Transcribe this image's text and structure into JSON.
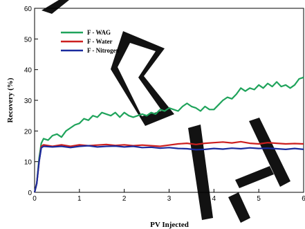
{
  "chart_data": {
    "type": "line",
    "xlabel": "PV Injected",
    "ylabel": "Recovery (%)",
    "xlim": [
      0,
      6
    ],
    "ylim": [
      0,
      60
    ],
    "xticks": [
      "0",
      "1",
      "2",
      "3",
      "4",
      "5",
      "6"
    ],
    "yticks": [
      "0",
      "10",
      "20",
      "30",
      "40",
      "50",
      "60"
    ],
    "legend_position": "top-left",
    "watermark": "PRINTED",
    "series": [
      {
        "name": "F - WAG",
        "color": "#1fa35b",
        "x": [
          0,
          0.05,
          0.1,
          0.15,
          0.2,
          0.3,
          0.4,
          0.5,
          0.6,
          0.7,
          0.8,
          0.9,
          1.0,
          1.1,
          1.2,
          1.3,
          1.4,
          1.5,
          1.6,
          1.7,
          1.8,
          1.9,
          2.0,
          2.1,
          2.2,
          2.3,
          2.4,
          2.5,
          2.6,
          2.7,
          2.8,
          2.9,
          3.0,
          3.1,
          3.2,
          3.3,
          3.4,
          3.5,
          3.6,
          3.7,
          3.8,
          3.9,
          4.0,
          4.1,
          4.2,
          4.3,
          4.4,
          4.5,
          4.6,
          4.7,
          4.8,
          4.9,
          5.0,
          5.1,
          5.2,
          5.3,
          5.4,
          5.5,
          5.6,
          5.7,
          5.8,
          5.9,
          6.0
        ],
        "y": [
          0,
          3,
          11,
          16,
          17.5,
          17,
          18.5,
          19,
          18,
          20,
          21,
          22,
          22.5,
          24,
          23.5,
          25,
          24.5,
          26,
          25.5,
          25,
          26,
          24.5,
          26,
          25,
          24.5,
          25,
          25.5,
          25,
          26,
          25.5,
          27,
          26.5,
          27.5,
          27,
          26.5,
          28,
          29,
          28,
          27.5,
          26.5,
          28,
          27,
          27,
          28.5,
          30,
          31,
          30.5,
          32,
          34,
          33,
          34,
          33.5,
          35,
          34,
          35.5,
          34.5,
          36,
          34.5,
          35,
          34,
          35,
          37,
          37.5
        ]
      },
      {
        "name": "F - Water",
        "color": "#cc1f1f",
        "x": [
          0,
          0.05,
          0.1,
          0.15,
          0.2,
          0.4,
          0.6,
          0.8,
          1.0,
          1.2,
          1.4,
          1.6,
          1.8,
          2.0,
          2.2,
          2.4,
          2.6,
          2.8,
          3.0,
          3.2,
          3.4,
          3.6,
          3.8,
          4.0,
          4.2,
          4.4,
          4.6,
          4.8,
          5.0,
          5.2,
          5.4,
          5.6,
          5.8,
          6.0
        ],
        "y": [
          0,
          3,
          10,
          15,
          15.5,
          15,
          15.5,
          15,
          15.5,
          15.2,
          15.4,
          15.6,
          15.3,
          15.5,
          15.2,
          15.4,
          15.2,
          15.0,
          15.4,
          15.8,
          16.0,
          15.6,
          16.0,
          16.2,
          16.4,
          16.1,
          16.5,
          16.0,
          15.8,
          16.2,
          16.0,
          15.8,
          15.9,
          15.8
        ]
      },
      {
        "name": "F - Nitrogen",
        "color": "#1a2b9e",
        "x": [
          0,
          0.05,
          0.1,
          0.15,
          0.2,
          0.4,
          0.6,
          0.8,
          1.0,
          1.2,
          1.4,
          1.6,
          1.8,
          2.0,
          2.2,
          2.4,
          2.6,
          2.8,
          3.0,
          3.2,
          3.4,
          3.6,
          3.8,
          4.0,
          4.2,
          4.4,
          4.6,
          4.8,
          5.0,
          5.2,
          5.4,
          5.6,
          5.8,
          6.0
        ],
        "y": [
          0,
          3,
          10,
          14.5,
          15,
          14.8,
          15,
          14.6,
          15,
          15.2,
          14.8,
          15,
          15.1,
          14.8,
          15,
          14.6,
          14.7,
          14.4,
          14.6,
          14.3,
          14.2,
          13.9,
          14.0,
          14.3,
          14.1,
          14.4,
          14.2,
          14.5,
          14.3,
          14.4,
          14.2,
          14.0,
          14.3,
          14.0
        ]
      }
    ]
  }
}
